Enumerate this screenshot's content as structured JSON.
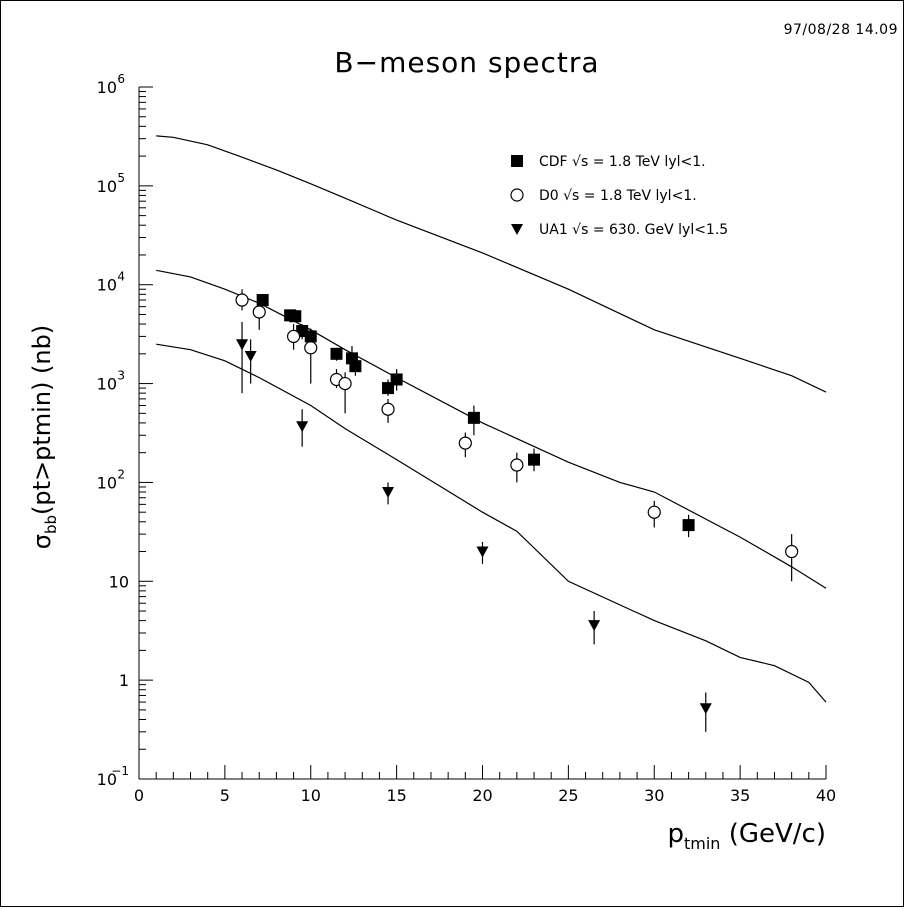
{
  "header": {
    "timestamp": "97/08/28  14.09"
  },
  "chart_data": {
    "type": "scatter",
    "title": "B−meson spectra",
    "ylabel_parts": {
      "sigma": "σ",
      "subscript": "bb",
      "rest": "(pt>ptmin) (nb)"
    },
    "xlabel_parts": {
      "main": "p",
      "subscript": "tmin",
      "rest": " (GeV/c)"
    },
    "xlim": [
      0,
      40
    ],
    "ylim": [
      0.1,
      1000000
    ],
    "yscale": "log",
    "x_ticks": [
      "0",
      "5",
      "10",
      "15",
      "20",
      "25",
      "30",
      "35",
      "40"
    ],
    "y_ticks": [
      {
        "v": 0.1,
        "base": "10",
        "exp": "−1"
      },
      {
        "v": 1,
        "base": "1",
        "exp": ""
      },
      {
        "v": 10,
        "base": "10",
        "exp": ""
      },
      {
        "v": 100,
        "base": "10",
        "exp": "2"
      },
      {
        "v": 1000,
        "base": "10",
        "exp": "3"
      },
      {
        "v": 10000,
        "base": "10",
        "exp": "4"
      },
      {
        "v": 100000,
        "base": "10",
        "exp": "5"
      },
      {
        "v": 1000000,
        "base": "10",
        "exp": "6"
      }
    ],
    "legend_position": "top-right",
    "series": [
      {
        "name": "CDF √s = 1.8 TeV lyl<1.",
        "marker": "filled-square",
        "points": [
          {
            "x": 7.2,
            "y": 7000,
            "lo": 6000,
            "hi": 8000
          },
          {
            "x": 8.8,
            "y": 4900,
            "lo": 4300,
            "hi": 5500
          },
          {
            "x": 9.1,
            "y": 4800,
            "lo": 4200,
            "hi": 5400
          },
          {
            "x": 9.5,
            "y": 3400,
            "lo": 2800,
            "hi": 4000
          },
          {
            "x": 10.0,
            "y": 3000,
            "lo": 2500,
            "hi": 3600
          },
          {
            "x": 11.5,
            "y": 2000,
            "lo": 1700,
            "hi": 2300
          },
          {
            "x": 12.4,
            "y": 1800,
            "lo": 1400,
            "hi": 2400
          },
          {
            "x": 12.6,
            "y": 1500,
            "lo": 1200,
            "hi": 1800
          },
          {
            "x": 14.5,
            "y": 900,
            "lo": 750,
            "hi": 1100
          },
          {
            "x": 15.0,
            "y": 1100,
            "lo": 850,
            "hi": 1400
          },
          {
            "x": 19.5,
            "y": 450,
            "lo": 300,
            "hi": 600
          },
          {
            "x": 23.0,
            "y": 170,
            "lo": 130,
            "hi": 220
          },
          {
            "x": 32.0,
            "y": 37,
            "lo": 28,
            "hi": 47
          }
        ]
      },
      {
        "name": "D0 √s = 1.8 TeV lyl<1.",
        "marker": "open-circle",
        "points": [
          {
            "x": 6.0,
            "y": 7000,
            "lo": 5500,
            "hi": 9000
          },
          {
            "x": 7.0,
            "y": 5300,
            "lo": 3500,
            "hi": 7000
          },
          {
            "x": 9.0,
            "y": 3000,
            "lo": 2200,
            "hi": 4000
          },
          {
            "x": 10.0,
            "y": 2300,
            "lo": 1000,
            "hi": 3000
          },
          {
            "x": 11.5,
            "y": 1100,
            "lo": 900,
            "hi": 1400
          },
          {
            "x": 12.0,
            "y": 1000,
            "lo": 500,
            "hi": 1300
          },
          {
            "x": 14.5,
            "y": 550,
            "lo": 400,
            "hi": 700
          },
          {
            "x": 19.0,
            "y": 250,
            "lo": 180,
            "hi": 320
          },
          {
            "x": 22.0,
            "y": 150,
            "lo": 100,
            "hi": 200
          },
          {
            "x": 30.0,
            "y": 50,
            "lo": 35,
            "hi": 65
          },
          {
            "x": 38.0,
            "y": 20,
            "lo": 10,
            "hi": 30
          }
        ]
      },
      {
        "name": "UA1 √s = 630. GeV lyl<1.5",
        "marker": "filled-triangle-down",
        "points": [
          {
            "x": 6.0,
            "y": 2500,
            "lo": 800,
            "hi": 4200
          },
          {
            "x": 6.5,
            "y": 1900,
            "lo": 1000,
            "hi": 2800
          },
          {
            "x": 9.5,
            "y": 370,
            "lo": 230,
            "hi": 550
          },
          {
            "x": 14.5,
            "y": 80,
            "lo": 60,
            "hi": 100
          },
          {
            "x": 20.0,
            "y": 20,
            "lo": 15,
            "hi": 25
          },
          {
            "x": 26.5,
            "y": 3.6,
            "lo": 2.3,
            "hi": 5
          },
          {
            "x": 33.0,
            "y": 0.52,
            "lo": 0.3,
            "hi": 0.75
          }
        ]
      }
    ],
    "curves": [
      {
        "points": [
          [
            1,
            320000
          ],
          [
            2,
            310000
          ],
          [
            4,
            260000
          ],
          [
            6,
            195000
          ],
          [
            8,
            145000
          ],
          [
            10,
            105000
          ],
          [
            12,
            75000
          ],
          [
            15,
            45000
          ],
          [
            20,
            21000
          ],
          [
            25,
            9000
          ],
          [
            30,
            3500
          ],
          [
            35,
            1800
          ],
          [
            38,
            1200
          ],
          [
            40,
            820
          ]
        ]
      },
      {
        "points": [
          [
            1,
            14000
          ],
          [
            3,
            12000
          ],
          [
            5,
            9000
          ],
          [
            7,
            6500
          ],
          [
            10,
            3500
          ],
          [
            12,
            2200
          ],
          [
            15,
            1150
          ],
          [
            20,
            400
          ],
          [
            25,
            160
          ],
          [
            28,
            100
          ],
          [
            30,
            80
          ],
          [
            35,
            28
          ],
          [
            38,
            14
          ],
          [
            40,
            8.5
          ]
        ]
      },
      {
        "points": [
          [
            1,
            2500
          ],
          [
            3,
            2200
          ],
          [
            5,
            1700
          ],
          [
            7,
            1150
          ],
          [
            10,
            600
          ],
          [
            12,
            350
          ],
          [
            15,
            170
          ],
          [
            20,
            50
          ],
          [
            22,
            32
          ],
          [
            25,
            10
          ],
          [
            30,
            4
          ],
          [
            33,
            2.5
          ],
          [
            35,
            1.7
          ],
          [
            37,
            1.4
          ],
          [
            39,
            0.95
          ],
          [
            40,
            0.6
          ]
        ]
      }
    ]
  }
}
